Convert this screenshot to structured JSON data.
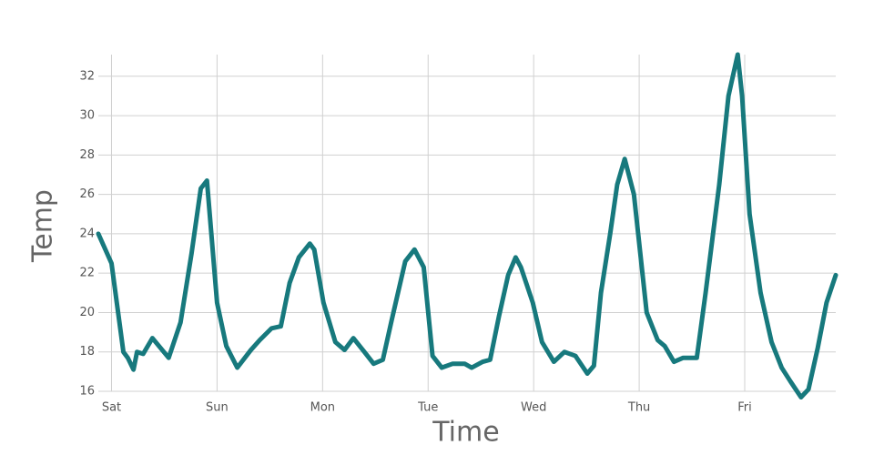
{
  "chart_data": {
    "type": "line",
    "x_label": "Time",
    "y_label": "Temp",
    "x": [
      0,
      3,
      4.2,
      5.7,
      6.7,
      8,
      8.8,
      10.2,
      12.3,
      16,
      18.7,
      21.2,
      23.3,
      24.7,
      27,
      29.1,
      31.6,
      34.7,
      36.7,
      39.4,
      41.5,
      43.5,
      45.6,
      48.1,
      49.1,
      51.2,
      53.9,
      56,
      58,
      60.5,
      62.6,
      64.7,
      66.7,
      69.8,
      71.9,
      74,
      76,
      78.1,
      80.6,
      83.3,
      84.9,
      87.4,
      89.1,
      91.1,
      93.2,
      94.9,
      96.1,
      98.8,
      100.9,
      103.6,
      106,
      108.5,
      111.2,
      112.7,
      114.3,
      116.4,
      118,
      119.7,
      121.8,
      124.7,
      127.2,
      128.8,
      130.9,
      133,
      136.1,
      138.1,
      141.2,
      143.3,
      145.4,
      146.4,
      148.1,
      150.6,
      153.1,
      155.4,
      157.4,
      159.8,
      161.5,
      163.6,
      165.6,
      167.7
    ],
    "series": [
      {
        "name": "Temp",
        "color": "#17797d",
        "values": [
          24,
          22.5,
          20.5,
          18,
          17.7,
          17.1,
          18,
          17.9,
          18.7,
          17.7,
          19.5,
          23,
          26.3,
          26.7,
          20.5,
          18.3,
          17.2,
          18.1,
          18.6,
          19.2,
          19.3,
          21.5,
          22.8,
          23.5,
          23.2,
          20.5,
          18.5,
          18.1,
          18.7,
          18,
          17.4,
          17.6,
          19.6,
          22.6,
          23.2,
          22.3,
          17.8,
          17.2,
          17.4,
          17.4,
          17.2,
          17.5,
          17.6,
          19.8,
          21.9,
          22.8,
          22.3,
          20.5,
          18.5,
          17.5,
          18,
          17.8,
          16.9,
          17.3,
          21,
          24,
          26.5,
          27.8,
          26,
          20,
          18.6,
          18.3,
          17.5,
          17.7,
          17.7,
          21,
          26.5,
          31,
          33.1,
          31,
          25,
          21,
          18.5,
          17.2,
          16.5,
          15.7,
          16.1,
          18.2,
          20.5,
          21.9
        ]
      }
    ],
    "xlim": [
      0,
      167.7
    ],
    "xticks": [
      {
        "value": 3,
        "label": "Sat"
      },
      {
        "value": 27,
        "label": "Sun"
      },
      {
        "value": 51,
        "label": "Mon"
      },
      {
        "value": 75,
        "label": "Tue"
      },
      {
        "value": 99,
        "label": "Wed"
      },
      {
        "value": 123,
        "label": "Thu"
      },
      {
        "value": 147,
        "label": "Fri"
      }
    ],
    "ylim": [
      16,
      33.1
    ],
    "yticks": [
      16,
      18,
      20,
      22,
      24,
      26,
      28,
      30,
      32
    ],
    "grid": true
  }
}
